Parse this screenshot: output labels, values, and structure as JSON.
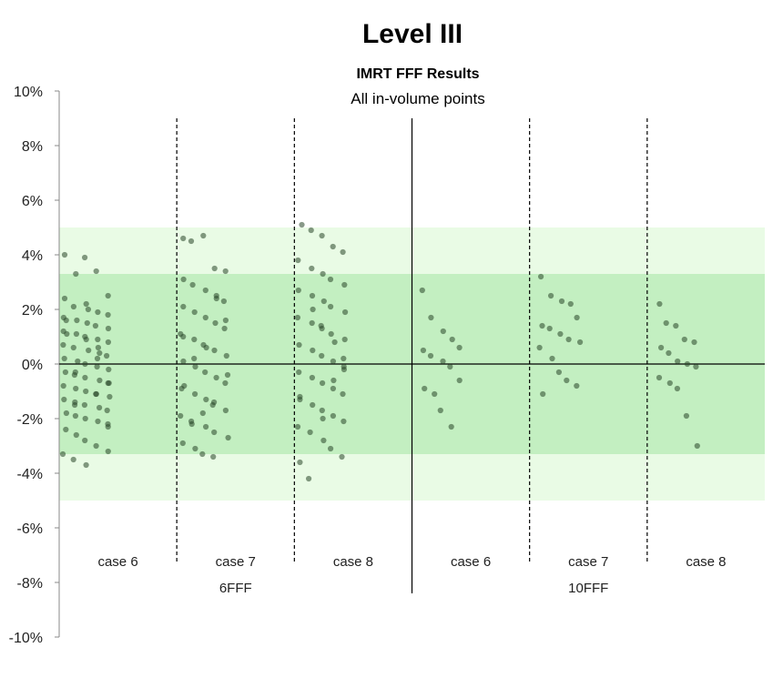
{
  "chart_data": {
    "type": "scatter",
    "title": "Level III",
    "subtitle": "IMRT FFF Results",
    "subtitle2": "All in-volume points",
    "y_ticks": [
      "10%",
      "8%",
      "6%",
      "4%",
      "2%",
      "0%",
      "-2%",
      "-4%",
      "-6%",
      "-8%",
      "-10%"
    ],
    "ylim": [
      -10,
      10
    ],
    "bands": {
      "outer": {
        "min": -5,
        "max": 5,
        "color": "#e9fbe5"
      },
      "inner": {
        "min": -3.3,
        "max": 3.3,
        "color": "#c3efc1"
      }
    },
    "groups": [
      {
        "label": "6FFF",
        "cases": [
          {
            "label": "case 6",
            "values": [
              4.0,
              3.3,
              3.9,
              3.4,
              2.5,
              2.4,
              2.1,
              2.0,
              1.9,
              1.8,
              1.7,
              1.6,
              1.5,
              1.4,
              1.3,
              1.2,
              1.1,
              1.0,
              0.9,
              0.8,
              0.7,
              0.6,
              0.5,
              0.4,
              0.3,
              0.2,
              0.1,
              0.0,
              -0.1,
              -0.2,
              -0.3,
              -0.4,
              -0.5,
              -0.6,
              -0.7,
              -0.8,
              -0.9,
              -1.0,
              -1.1,
              -1.2,
              -1.3,
              -1.4,
              -1.5,
              -1.6,
              -1.7,
              -1.8,
              -1.9,
              -2.0,
              -2.1,
              -2.2,
              -2.4,
              -2.6,
              -2.8,
              -3.0,
              -3.2,
              -3.3,
              -3.5,
              -3.7,
              0.6,
              -0.7,
              1.1,
              -1.5,
              2.2,
              0.2,
              -2.3,
              1.6,
              -0.3,
              0.9,
              -1.1
            ]
          },
          {
            "label": "case 7",
            "values": [
              4.6,
              4.5,
              4.7,
              3.5,
              3.4,
              3.1,
              2.9,
              2.7,
              2.5,
              2.3,
              2.1,
              1.9,
              1.7,
              1.5,
              1.3,
              1.1,
              0.9,
              0.7,
              0.5,
              0.3,
              0.1,
              -0.1,
              -0.3,
              -0.5,
              -0.7,
              -0.9,
              -1.1,
              -1.3,
              -1.5,
              -1.7,
              -1.9,
              -2.1,
              -2.3,
              -2.5,
              -2.7,
              -2.9,
              -3.1,
              -3.3,
              -3.4,
              1.6,
              -0.8,
              0.2,
              -1.8,
              2.4,
              -0.4,
              1.0,
              -2.2,
              0.6,
              -1.4
            ]
          },
          {
            "label": "case 8",
            "values": [
              5.1,
              4.9,
              4.7,
              4.3,
              4.1,
              3.8,
              3.5,
              3.3,
              3.1,
              2.9,
              2.7,
              2.5,
              2.3,
              2.1,
              1.9,
              1.7,
              1.5,
              1.3,
              1.1,
              0.9,
              0.7,
              0.5,
              0.3,
              0.1,
              -0.1,
              -0.3,
              -0.5,
              -0.7,
              -0.9,
              -1.1,
              -1.3,
              -1.5,
              -1.7,
              -1.9,
              -2.1,
              -2.3,
              -2.5,
              -2.8,
              -3.1,
              -3.4,
              -3.6,
              -4.2,
              1.4,
              -0.6,
              0.2,
              -1.2,
              2.0,
              -2.0,
              0.8,
              -0.2
            ]
          }
        ]
      },
      {
        "label": "10FFF",
        "cases": [
          {
            "label": "case 6",
            "values": [
              2.7,
              1.7,
              1.2,
              0.9,
              0.6,
              0.5,
              0.3,
              0.1,
              -0.1,
              -0.6,
              -0.9,
              -1.1,
              -1.7,
              -2.3
            ]
          },
          {
            "label": "case 7",
            "values": [
              3.2,
              2.5,
              2.3,
              2.2,
              1.7,
              1.4,
              1.3,
              1.1,
              0.9,
              0.8,
              0.6,
              0.2,
              -0.3,
              -0.6,
              -0.8,
              -1.1
            ]
          },
          {
            "label": "case 8",
            "values": [
              2.2,
              1.5,
              1.4,
              0.9,
              0.8,
              0.6,
              0.4,
              0.1,
              0.0,
              -0.1,
              -0.5,
              -0.7,
              -0.9,
              -1.9,
              -3.0
            ]
          }
        ]
      }
    ]
  }
}
